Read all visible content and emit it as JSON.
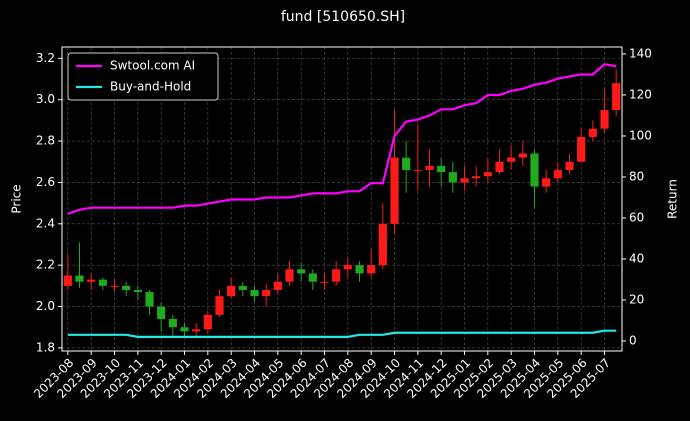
{
  "chart_data": {
    "type": "candlestick-with-lines",
    "title": "fund [510650.SH]",
    "ylabel": "Price",
    "y2label": "Return",
    "categories": [
      "2023-08",
      null,
      "2023-09",
      null,
      "2023-10",
      null,
      "2023-11",
      null,
      "2023-12",
      null,
      "2024-01",
      null,
      "2024-02",
      null,
      "2024-03",
      null,
      "2024-04",
      null,
      "2024-05",
      null,
      "2024-06",
      null,
      "2024-07",
      null,
      "2024-08",
      null,
      "2024-09",
      null,
      "2024-10",
      null,
      "2024-11",
      null,
      "2024-12",
      null,
      "2025-01",
      null,
      "2025-02",
      null,
      "2025-03",
      null,
      "2025-04",
      null,
      "2025-05",
      null,
      "2025-06",
      null,
      "2025-07",
      null
    ],
    "open": [
      2.1,
      2.15,
      2.12,
      2.13,
      2.1,
      2.1,
      2.08,
      2.07,
      2.0,
      1.94,
      1.9,
      1.88,
      1.89,
      1.96,
      2.05,
      2.1,
      2.08,
      2.05,
      2.08,
      2.12,
      2.18,
      2.16,
      2.12,
      2.12,
      2.18,
      2.2,
      2.16,
      2.2,
      2.4,
      2.72,
      2.66,
      2.66,
      2.68,
      2.65,
      2.6,
      2.62,
      2.63,
      2.65,
      2.7,
      2.72,
      2.74,
      2.58,
      2.62,
      2.66,
      2.7,
      2.82,
      2.86,
      2.95
    ],
    "high": [
      2.25,
      2.31,
      2.16,
      2.14,
      2.13,
      2.12,
      2.1,
      2.08,
      2.02,
      1.96,
      1.92,
      1.92,
      1.98,
      2.08,
      2.14,
      2.12,
      2.1,
      2.11,
      2.16,
      2.22,
      2.21,
      2.18,
      2.16,
      2.22,
      2.24,
      2.22,
      2.28,
      2.5,
      2.95,
      2.8,
      2.88,
      2.76,
      2.72,
      2.7,
      2.68,
      2.68,
      2.72,
      2.76,
      2.78,
      2.8,
      2.76,
      2.66,
      2.7,
      2.74,
      2.86,
      2.9,
      3.05,
      3.15
    ],
    "low": [
      2.08,
      2.09,
      2.08,
      2.08,
      2.07,
      2.05,
      2.03,
      1.96,
      1.88,
      1.86,
      1.85,
      1.85,
      1.87,
      1.95,
      2.04,
      2.05,
      2.02,
      2.0,
      2.06,
      2.1,
      2.12,
      2.08,
      2.08,
      2.1,
      2.14,
      2.12,
      2.14,
      2.18,
      2.35,
      2.55,
      2.56,
      2.58,
      2.58,
      2.55,
      2.56,
      2.58,
      2.6,
      2.64,
      2.66,
      2.68,
      2.48,
      2.55,
      2.6,
      2.64,
      2.7,
      2.8,
      2.84,
      2.92
    ],
    "close": [
      2.15,
      2.12,
      2.13,
      2.1,
      2.1,
      2.08,
      2.07,
      2.0,
      1.94,
      1.9,
      1.88,
      1.89,
      1.96,
      2.05,
      2.1,
      2.08,
      2.05,
      2.08,
      2.12,
      2.18,
      2.16,
      2.12,
      2.12,
      2.18,
      2.2,
      2.16,
      2.2,
      2.4,
      2.72,
      2.66,
      2.66,
      2.68,
      2.65,
      2.6,
      2.62,
      2.63,
      2.65,
      2.7,
      2.72,
      2.74,
      2.58,
      2.62,
      2.66,
      2.7,
      2.82,
      2.86,
      2.95,
      3.08
    ],
    "up_color": "#ff1a1a",
    "down_color": "#1faa1f",
    "series": [
      {
        "name": "Swtool.com AI",
        "color": "#ff00ff",
        "axis": "y2",
        "values": [
          62,
          64,
          65,
          65,
          65,
          65,
          65,
          65,
          65,
          65,
          66,
          66,
          67,
          68,
          69,
          69,
          69,
          70,
          70,
          70,
          71,
          72,
          72,
          72,
          73,
          73,
          77,
          77,
          100,
          107,
          108,
          110,
          113,
          113,
          115,
          116,
          120,
          120,
          122,
          123,
          125,
          126,
          128,
          129,
          130,
          130,
          135,
          134
        ]
      },
      {
        "name": "Buy-and-Hold",
        "color": "#22e8e8",
        "axis": "y2",
        "values": [
          3,
          3,
          3,
          3,
          3,
          3,
          2,
          2,
          2,
          2,
          2,
          2,
          2,
          2,
          2,
          2,
          2,
          2,
          2,
          2,
          2,
          2,
          2,
          2,
          2,
          3,
          3,
          3,
          4,
          4,
          4,
          4,
          4,
          4,
          4,
          4,
          4,
          4,
          4,
          4,
          4,
          4,
          4,
          4,
          4,
          4,
          5,
          5
        ]
      }
    ],
    "ylim": [
      1.785,
      3.255
    ],
    "yticks": [
      1.8,
      {
        "value": 2,
        "label": "2.0"
      },
      2.2,
      2.4,
      2.6,
      2.8,
      {
        "value": 3,
        "label": "3.0"
      },
      3.2
    ],
    "y2lim": [
      -4.9,
      143.4
    ],
    "y2ticks": [
      0,
      20,
      40,
      60,
      80,
      100,
      120,
      140
    ],
    "grid": true,
    "legend": "upper left"
  }
}
